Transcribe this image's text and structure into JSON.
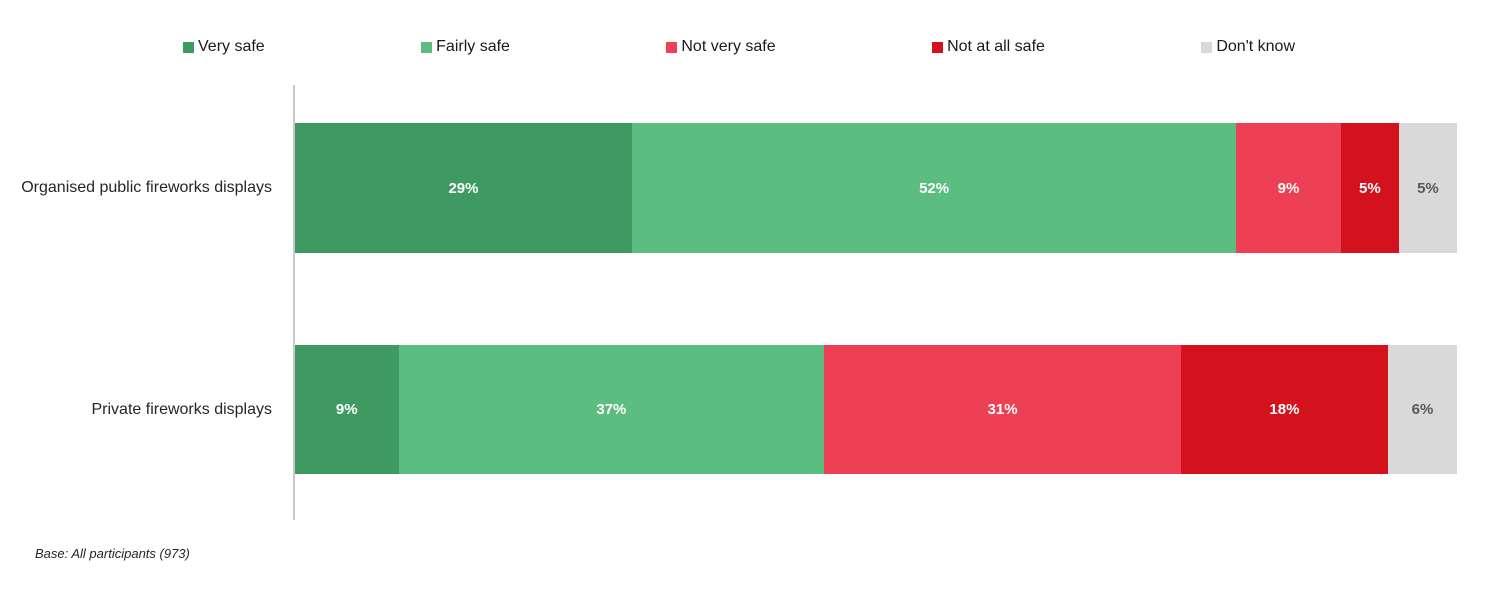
{
  "chart_data": {
    "type": "bar",
    "variant": "horizontal-stacked",
    "title": "",
    "xlabel": "",
    "ylabel": "",
    "value_suffix": "%",
    "xlim": [
      0,
      100
    ],
    "grid": false,
    "legend_position": "top",
    "categories": [
      "Organised public fireworks displays",
      "Private fireworks displays"
    ],
    "series": [
      {
        "name": "Very safe",
        "color": "#3f9a62",
        "label_color": "#ffffff",
        "values": [
          29,
          9
        ]
      },
      {
        "name": "Fairly safe",
        "color": "#5cbd80",
        "label_color": "#ffffff",
        "values": [
          52,
          37
        ]
      },
      {
        "name": "Not very safe",
        "color": "#ee4054",
        "label_color": "#ffffff",
        "values": [
          9,
          31
        ]
      },
      {
        "name": "Not at all safe",
        "color": "#d3121e",
        "label_color": "#ffffff",
        "values": [
          5,
          18
        ]
      },
      {
        "name": "Don't know",
        "color": "#d9d9d9",
        "label_color": "#595959",
        "values": [
          5,
          6
        ]
      }
    ],
    "note": "Base: All participants (973)"
  },
  "footer": {
    "base_note": "Base: All participants (973)"
  },
  "colors": {
    "axis_line": "#c9c9c9",
    "background": "#ffffff",
    "legend_text": "#1a1a1a"
  }
}
